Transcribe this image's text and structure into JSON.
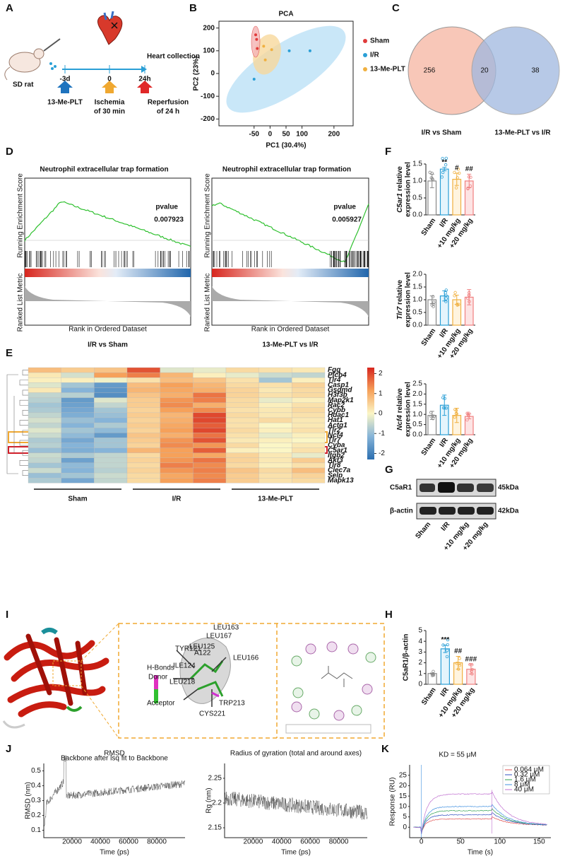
{
  "panel_labels": [
    "A",
    "B",
    "C",
    "D",
    "E",
    "F",
    "G",
    "H",
    "I",
    "J",
    "K"
  ],
  "a": {
    "sd_rat": "SD rat",
    "heart_collection": "Heart collection",
    "times": [
      "-3d",
      "0",
      "24h"
    ],
    "drug": "13-Me-PLT",
    "ischemia": [
      "Ischemia",
      "of 30 min"
    ],
    "reperfusion": [
      "Reperfusion",
      "of 24 h"
    ]
  },
  "b": {
    "type": "scatter",
    "title": "PCA",
    "xlabel": "PC1 (30.4%)",
    "ylabel": "PC2 (23%)",
    "xlim": [
      -160,
      260
    ],
    "ylim": [
      -230,
      230
    ],
    "xticks": [
      -50,
      0,
      50,
      100,
      200
    ],
    "yticks": [
      -200,
      -100,
      0,
      100,
      200
    ],
    "series": [
      {
        "name": "Sham",
        "color": "#e03a3a",
        "x": [
          -45,
          -42,
          -40
        ],
        "y": [
          170,
          150,
          110
        ]
      },
      {
        "name": "I/R",
        "color": "#2a9fd6",
        "x": [
          60,
          125,
          -50
        ],
        "y": [
          100,
          100,
          -25
        ]
      },
      {
        "name": "13-Me-PLT",
        "color": "#f0b040",
        "x": [
          -20,
          5,
          -15
        ],
        "y": [
          120,
          105,
          60
        ]
      }
    ]
  },
  "c": {
    "counts": [
      256,
      20,
      38
    ],
    "left_label": "I/R vs Sham",
    "right_label": "13-Me-PLT vs I/R"
  },
  "d": {
    "es_label": "Running Enrichment Score",
    "metric_label": "Ranked List Metric",
    "rank_label": "Rank in Ordered Dataset",
    "plots": [
      {
        "title": "Neutrophil extracellular trap formation",
        "pvalue_label": "pvalue",
        "pvalue": 0.007923,
        "caption": "I/R vs Sham"
      },
      {
        "title": "Neutrophil extracellular trap formation",
        "pvalue_label": "pvalue",
        "pvalue": 0.005927,
        "caption": "13-Me-PLT vs I/R"
      }
    ]
  },
  "e": {
    "type": "heatmap",
    "groups": [
      "Sham",
      "I/R",
      "13-Me-PLT"
    ],
    "genes": [
      "Fgg",
      "Plcb4",
      "Tlr4",
      "Casp1",
      "Gsdmd",
      "H3f3b",
      "Map2k1",
      "Rac2",
      "Cybb",
      "Hdac1",
      "Hat1",
      "Actg1",
      "Tlr2",
      "Ncf4",
      "Tlr7",
      "Cyba",
      "C5ar1",
      "Itgb2",
      "Akt3",
      "Tlr8",
      "Clec7a",
      "Selp",
      "Mapk13"
    ],
    "values": [
      [
        0.8,
        0.6,
        0.7,
        1.9,
        -0.3,
        -0.2,
        0.4,
        0.3,
        0.2
      ],
      [
        0.2,
        -0.4,
        1.2,
        1.5,
        0.9,
        0.1,
        -0.2,
        -0.5,
        -0.6
      ],
      [
        0.1,
        0.1,
        -0.1,
        0.3,
        0.8,
        0.7,
        0.3,
        -0.9,
        0.1
      ],
      [
        -0.3,
        -0.9,
        -1.6,
        0.8,
        1.2,
        0.9,
        0.4,
        0.3,
        0.5
      ],
      [
        0.2,
        -1.2,
        -1.7,
        0.9,
        1.1,
        1.0,
        0.5,
        0.2,
        0.4
      ],
      [
        -0.6,
        -0.7,
        -1.8,
        0.7,
        1.0,
        1.6,
        0.5,
        0.3,
        0.4
      ],
      [
        -0.7,
        -1.6,
        -0.3,
        0.6,
        1.3,
        1.5,
        0.4,
        -0.2,
        0.1
      ],
      [
        -0.9,
        -1.5,
        -0.6,
        0.6,
        1.4,
        1.0,
        0.4,
        0.1,
        0.3
      ],
      [
        -0.8,
        -1.4,
        -0.9,
        0.5,
        1.2,
        1.4,
        0.3,
        0.2,
        0.4
      ],
      [
        -0.6,
        -1.3,
        -1.0,
        0.6,
        0.9,
        2.0,
        0.4,
        0.2,
        0.3
      ],
      [
        -0.4,
        -1.0,
        -1.2,
        0.5,
        1.0,
        2.0,
        0.3,
        0.4,
        0.2
      ],
      [
        -0.6,
        -1.2,
        -0.8,
        0.6,
        1.1,
        1.8,
        0.3,
        0.0,
        0.2
      ],
      [
        -0.3,
        -0.9,
        -1.1,
        0.5,
        1.2,
        2.0,
        0.4,
        0.1,
        0.3
      ],
      [
        -0.5,
        -1.1,
        -1.6,
        0.7,
        1.0,
        1.6,
        0.3,
        -0.2,
        0.1
      ],
      [
        -0.8,
        -1.4,
        -0.9,
        0.6,
        1.3,
        1.9,
        0.2,
        0.1,
        0.0
      ],
      [
        -0.7,
        -1.2,
        -0.9,
        0.5,
        1.4,
        1.3,
        0.4,
        0.0,
        0.2
      ],
      [
        -1.0,
        -1.3,
        -1.2,
        0.9,
        1.2,
        1.8,
        0.1,
        0.0,
        0.3
      ],
      [
        -0.5,
        -0.8,
        -0.6,
        0.4,
        1.2,
        1.1,
        0.5,
        0.2,
        -0.2
      ],
      [
        -0.6,
        -1.5,
        -0.6,
        0.5,
        1.3,
        1.6,
        0.5,
        0.2,
        0.6
      ],
      [
        -0.9,
        -1.1,
        -0.6,
        0.4,
        1.5,
        1.4,
        0.4,
        0.1,
        0.3
      ],
      [
        -0.5,
        -1.2,
        -0.7,
        0.5,
        1.3,
        1.5,
        0.7,
        0.4,
        0.8
      ],
      [
        -1.0,
        -0.9,
        -0.5,
        0.4,
        1.1,
        1.4,
        0.6,
        0.3,
        0.5
      ],
      [
        -0.8,
        -1.4,
        -0.6,
        0.4,
        1.2,
        1.5,
        0.6,
        0.3,
        0.4
      ]
    ],
    "colorbar_lim": [
      -2.3,
      2.3
    ],
    "colorbar_ticks": [
      2,
      1,
      0,
      -1,
      -2
    ]
  },
  "f": [
    {
      "type": "bar",
      "gene": "C5ar1",
      "ylabel": "relative",
      "ylabel2": "expression level",
      "categories": [
        "Sham",
        "I/R",
        "+10 mg/kg",
        "+20 mg/kg"
      ],
      "values": [
        1.0,
        1.35,
        1.05,
        1.0
      ],
      "errors": [
        0.2,
        0.05,
        0.18,
        0.2
      ],
      "annotations": [
        null,
        "**",
        "#",
        "##"
      ],
      "ylim": [
        0,
        1.5
      ],
      "yticks": [
        {
          "value": 0,
          "label": "0.0"
        },
        0.5,
        {
          "value": 1,
          "label": "1.0"
        },
        1.5
      ]
    },
    {
      "type": "bar",
      "gene": "Tlr7",
      "ylabel": "relative",
      "ylabel2": "expression level",
      "categories": [
        "Sham",
        "I/R",
        "+10 mg/kg",
        "+20 mg/kg"
      ],
      "values": [
        1.0,
        1.15,
        1.0,
        1.1
      ],
      "errors": [
        0.15,
        0.2,
        0.18,
        0.3
      ],
      "annotations": [
        null,
        null,
        null,
        null
      ],
      "ylim": [
        0,
        2
      ],
      "yticks": [
        {
          "value": 0,
          "label": "0.0"
        },
        0.5,
        {
          "value": 1,
          "label": "1.0"
        },
        1.5,
        {
          "value": 2,
          "label": "2.0"
        }
      ]
    },
    {
      "type": "bar",
      "gene": "Ncf4",
      "ylabel": "relative",
      "ylabel2": "expression level",
      "categories": [
        "Sham",
        "I/R",
        "+10 mg/kg",
        "+20 mg/kg"
      ],
      "values": [
        0.95,
        1.45,
        0.95,
        0.9
      ],
      "errors": [
        0.2,
        0.5,
        0.35,
        0.12
      ],
      "annotations": [
        null,
        null,
        null,
        null
      ],
      "ylim": [
        0,
        2.5
      ],
      "yticks": [
        {
          "value": 0,
          "label": "0.0"
        },
        0.5,
        {
          "value": 1,
          "label": "1.0"
        },
        1.5,
        {
          "value": 2,
          "label": "2.0"
        },
        2.5
      ]
    }
  ],
  "g": {
    "bands": [
      "C5aR1",
      "β-actin"
    ],
    "sizes": [
      "45kDa",
      "42kDa"
    ],
    "lanes": [
      "Sham",
      "I/R",
      "+10 mg/kg",
      "+20 mg/kg"
    ]
  },
  "h": {
    "type": "bar",
    "ylabel": "C5aR1/β-actin",
    "categories": [
      "Sham",
      "I/R",
      "+10 mg/kg",
      "+20 mg/kg"
    ],
    "values": [
      1.0,
      3.3,
      2.0,
      1.4
    ],
    "errors": [
      0.05,
      0.35,
      0.6,
      0.45
    ],
    "annotations": [
      null,
      "***",
      "##",
      "###"
    ],
    "ylim": [
      0,
      5
    ],
    "yticks": [
      0,
      1,
      2,
      3,
      4,
      5
    ]
  },
  "i": {
    "residues": [
      "LEU163",
      "LEU167",
      "LEU125",
      "TYR121",
      "A122",
      "LEU166",
      "ILE124",
      "LEU218",
      "CYS221",
      "TRP213"
    ],
    "hbond_legend": [
      "H-Bonds",
      "Donor",
      "Acceptor"
    ]
  },
  "j": [
    {
      "title": "RMSD",
      "subtitle": "Backbone after lsq fit to Backbone",
      "ylabel": "RMSD (nm)",
      "xlabel": "Time (ps)",
      "xlim": [
        0,
        100000
      ],
      "xticks": [
        20000,
        40000,
        60000,
        80000
      ],
      "ylim": [
        0.05,
        0.55
      ],
      "yticks": [
        0.1,
        0.2,
        0.3,
        0.4,
        0.5
      ]
    },
    {
      "title": "Radius of gyration (total and around axes)",
      "ylabel": "Rg (nm)",
      "xlabel": "Time (ps)",
      "xlim": [
        0,
        100000
      ],
      "xticks": [
        20000,
        40000,
        60000,
        80000
      ],
      "ylim": [
        2.13,
        2.28
      ],
      "yticks": [
        2.15,
        2.2,
        2.25
      ]
    }
  ],
  "k": {
    "title": "KD = 55 μM",
    "ylabel": "Response (RU)",
    "xlabel": "Time (s)",
    "legend": [
      {
        "name": "0.064 μM",
        "color": "#e05050"
      },
      {
        "name": "0.32 μM",
        "color": "#3050c0"
      },
      {
        "name": "1.6 μM",
        "color": "#30a050"
      },
      {
        "name": "8 μM",
        "color": "#4090e0"
      },
      {
        "name": "40 μM",
        "color": "#c070d0"
      }
    ],
    "xlim": [
      -15,
      165
    ],
    "xticks": [
      0,
      50,
      100,
      150
    ],
    "ylim": [
      -5,
      30
    ],
    "yticks": [
      0,
      5,
      10,
      15,
      20,
      25
    ]
  }
}
